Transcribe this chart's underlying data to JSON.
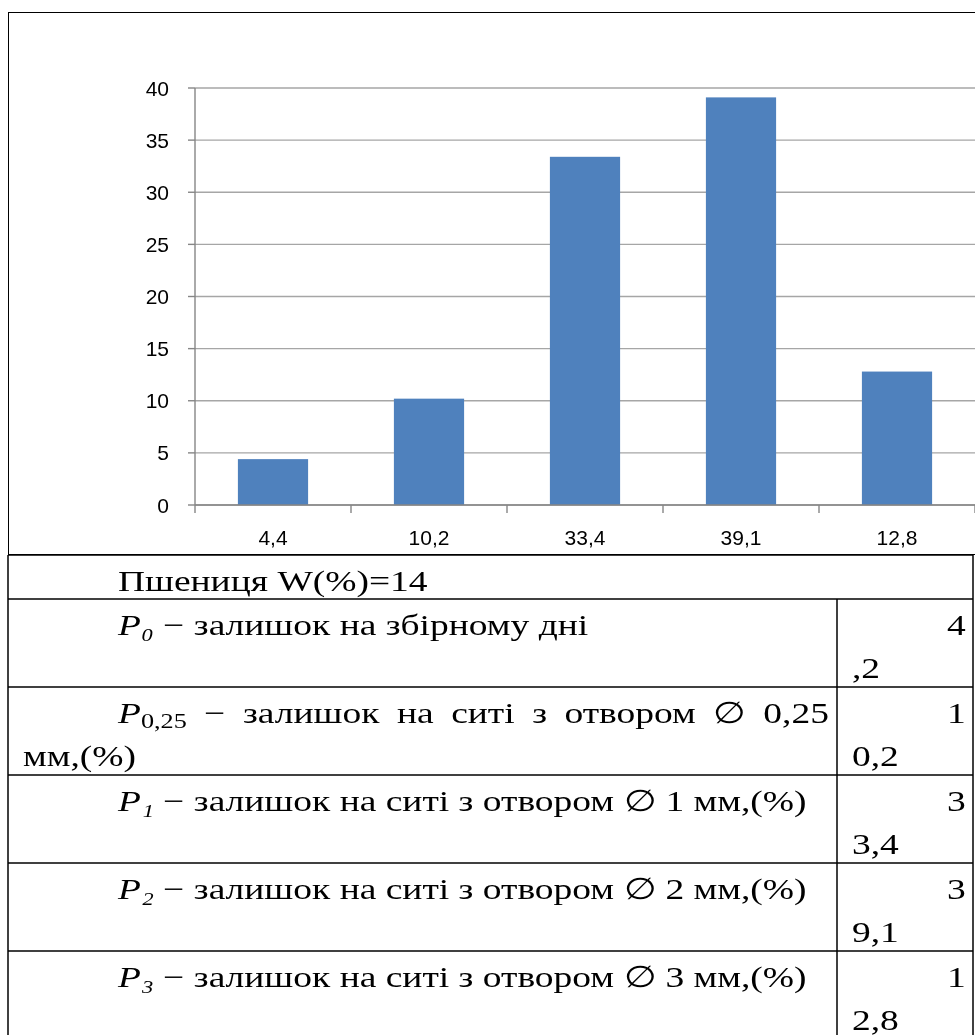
{
  "chart_data": {
    "type": "bar",
    "categories": [
      "4,4",
      "10,2",
      "33,4",
      "39,1",
      "12,8"
    ],
    "values": [
      4.4,
      10.2,
      33.4,
      39.1,
      12.8
    ],
    "color": "#4f81bd",
    "ylim": [
      0,
      40
    ],
    "yticks": [
      0,
      5,
      10,
      15,
      20,
      25,
      30,
      35,
      40
    ],
    "grid": "y",
    "annotations": [
      "Пшениця W(%)=14",
      "P₀ − залишок на збірному дні",
      "4,2",
      "P$_{0,25}$ − залишок на ситі з отвором ∅ 0,25 мм,(%)",
      "10,2",
      "P₁ − залишок на ситі з отвором ∅ 1 мм,(%)",
      "33,4",
      "P₂ − залишок на ситі з отвором ∅ 2 мм,(%)",
      "39,1",
      "P₃ − залишок на ситі з отвором ∅ 3 мм,(%)",
      "12,8"
    ]
  }
}
